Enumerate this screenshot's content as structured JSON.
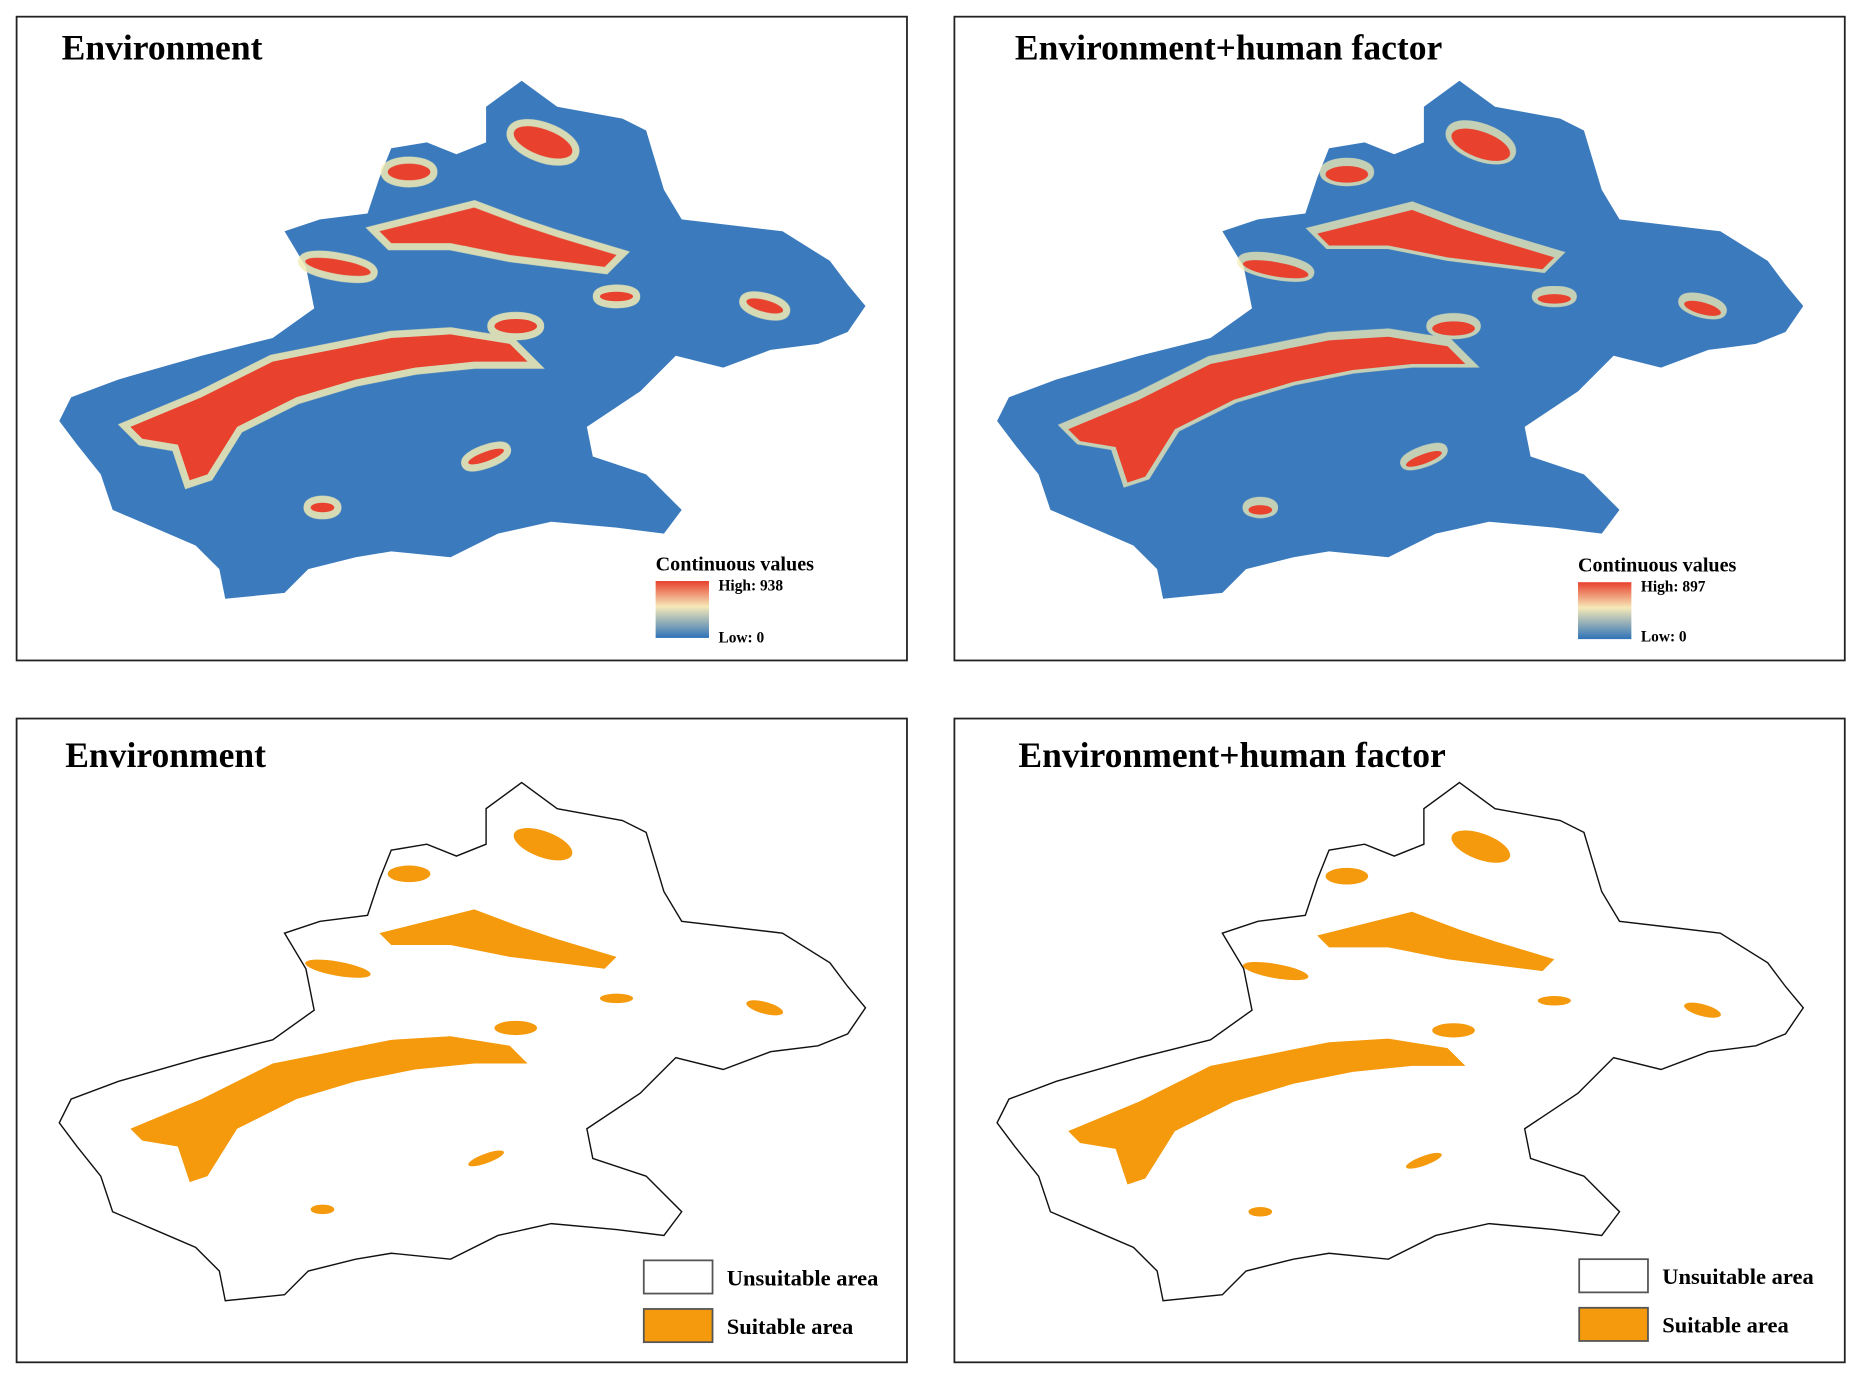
{
  "panels": [
    {
      "title": "Environment",
      "legend": {
        "title": "Continuous values",
        "high": "High: 938",
        "low": "Low: 0"
      }
    },
    {
      "title": "Environment+human factor",
      "legend": {
        "title": "Continuous values",
        "high": "High: 897",
        "low": "Low: 0"
      }
    },
    {
      "title": "Environment",
      "legend": {
        "items": [
          "Unsuitable area",
          "Suitable area"
        ]
      }
    },
    {
      "title": "Environment+human factor",
      "legend": {
        "items": [
          "Unsuitable area",
          "Suitable area"
        ]
      }
    }
  ]
}
